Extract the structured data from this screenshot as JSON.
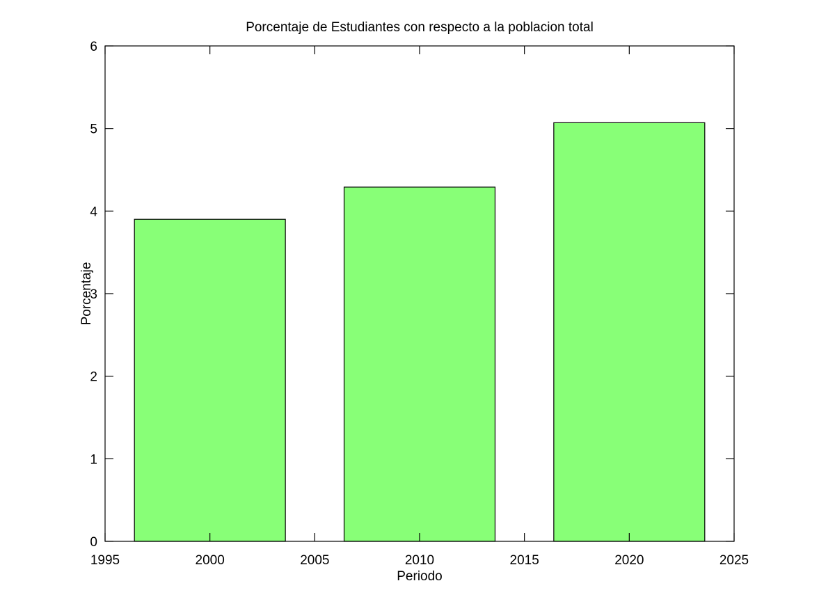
{
  "chart_data": {
    "type": "bar",
    "title": "Porcentaje de Estudiantes con respecto a la poblacion total",
    "xlabel": "Periodo",
    "ylabel": "Porcentaje",
    "categories": [
      2000,
      2010,
      2020
    ],
    "values": [
      3.9,
      4.29,
      5.07
    ],
    "bar_width": 7.2,
    "xlim": [
      1995,
      2025
    ],
    "ylim": [
      0,
      6
    ],
    "x_ticks": [
      1995,
      2000,
      2005,
      2010,
      2015,
      2020,
      2025
    ],
    "y_ticks": [
      0,
      1,
      2,
      3,
      4,
      5,
      6
    ],
    "grid": false,
    "legend": "none",
    "bar_color": "#88ff77",
    "edge_color": "#000000"
  }
}
